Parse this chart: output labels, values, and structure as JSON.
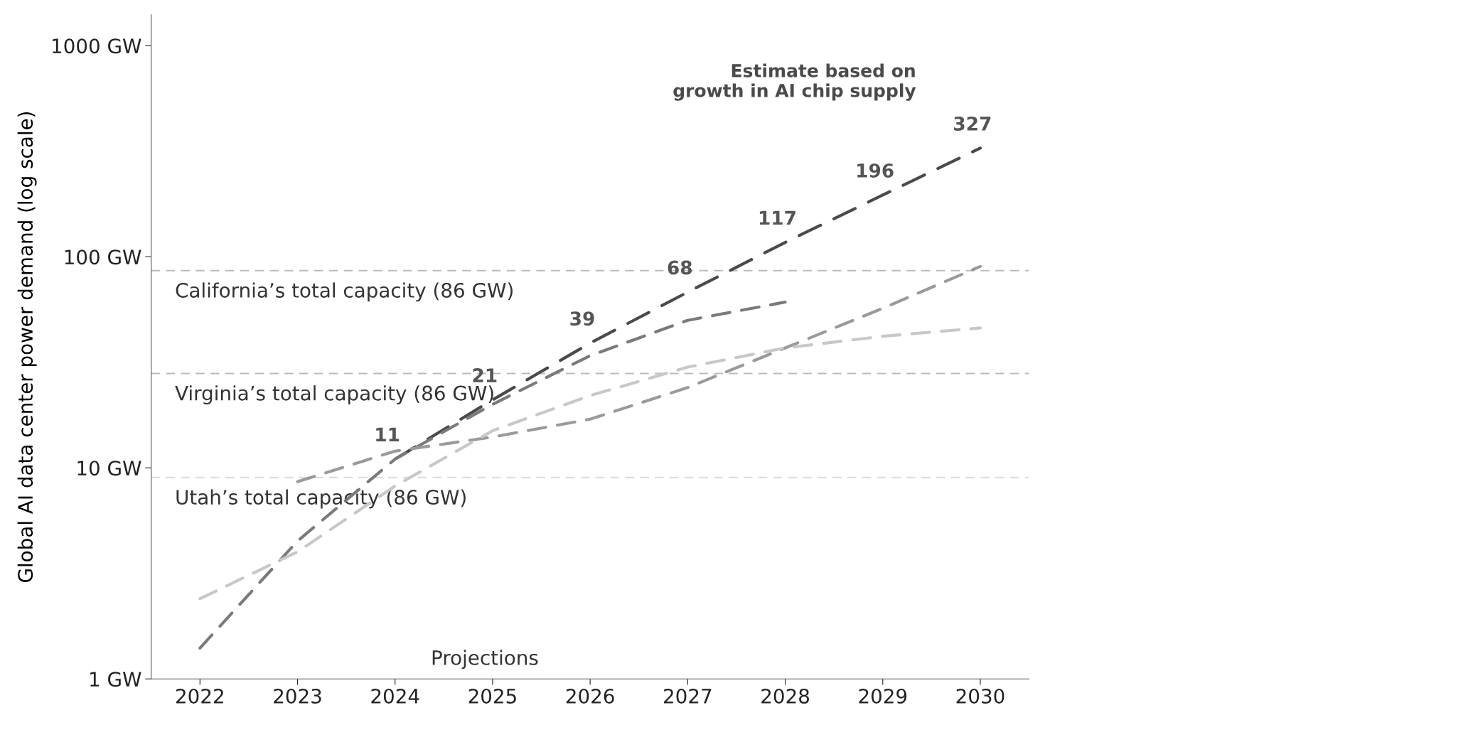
{
  "chart_data": {
    "type": "line",
    "ylabel": "Global AI data center power demand (log scale)",
    "log": "y",
    "xlim": [
      2021.5,
      2030.5
    ],
    "xticks": [
      2022,
      2023,
      2024,
      2025,
      2026,
      2027,
      2028,
      2029,
      2030
    ],
    "ylim": [
      1,
      1400
    ],
    "yticks": [
      {
        "value": 1,
        "label": "1 GW"
      },
      {
        "value": 10,
        "label": "10 GW"
      },
      {
        "value": 100,
        "label": "100 GW"
      },
      {
        "value": 1000,
        "label": "1000 GW"
      }
    ],
    "grid": false,
    "legend": false,
    "line_style": "dashed",
    "marker": "none",
    "series": [
      {
        "name": "Estimate based on\ngrowth in AI chip supply",
        "color": "#4a4a4a",
        "x": [
          2024,
          2025,
          2026,
          2027,
          2028,
          2029,
          2030
        ],
        "values": [
          11,
          21,
          39,
          68,
          117,
          196,
          327
        ],
        "data_labels": true
      },
      {
        "color": "#7a7a7a",
        "x": [
          2022,
          2023,
          2024,
          2025,
          2026,
          2027,
          2028
        ],
        "values": [
          1.4,
          4.5,
          11,
          20,
          34,
          50,
          61
        ]
      },
      {
        "color": "#9a9a9a",
        "x": [
          2023,
          2024,
          2025,
          2026,
          2027,
          2028,
          2029,
          2030
        ],
        "values": [
          8.6,
          12,
          14,
          17,
          24,
          37,
          57,
          90
        ]
      },
      {
        "color": "#c8c8c8",
        "x": [
          2022,
          2023,
          2024,
          2025,
          2026,
          2027,
          2028,
          2029,
          2030
        ],
        "values": [
          2.4,
          4,
          8.2,
          15,
          22,
          30,
          37,
          42,
          46
        ]
      }
    ],
    "ref_lines": [
      {
        "axis": "y",
        "value": 86,
        "label": "California’s total capacity (86 GW)",
        "color": "#bbbbbb",
        "line_style": "dashed"
      },
      {
        "axis": "y",
        "value": 28,
        "label": "Virginia’s total capacity (86 GW)",
        "color": "#bbbbbb",
        "line_style": "dashed"
      },
      {
        "axis": "y",
        "value": 9,
        "label": "Utah’s total capacity (86 GW)",
        "color": "#dddddd",
        "line_style": "dashed"
      }
    ],
    "annotations": [
      "Projections"
    ]
  }
}
